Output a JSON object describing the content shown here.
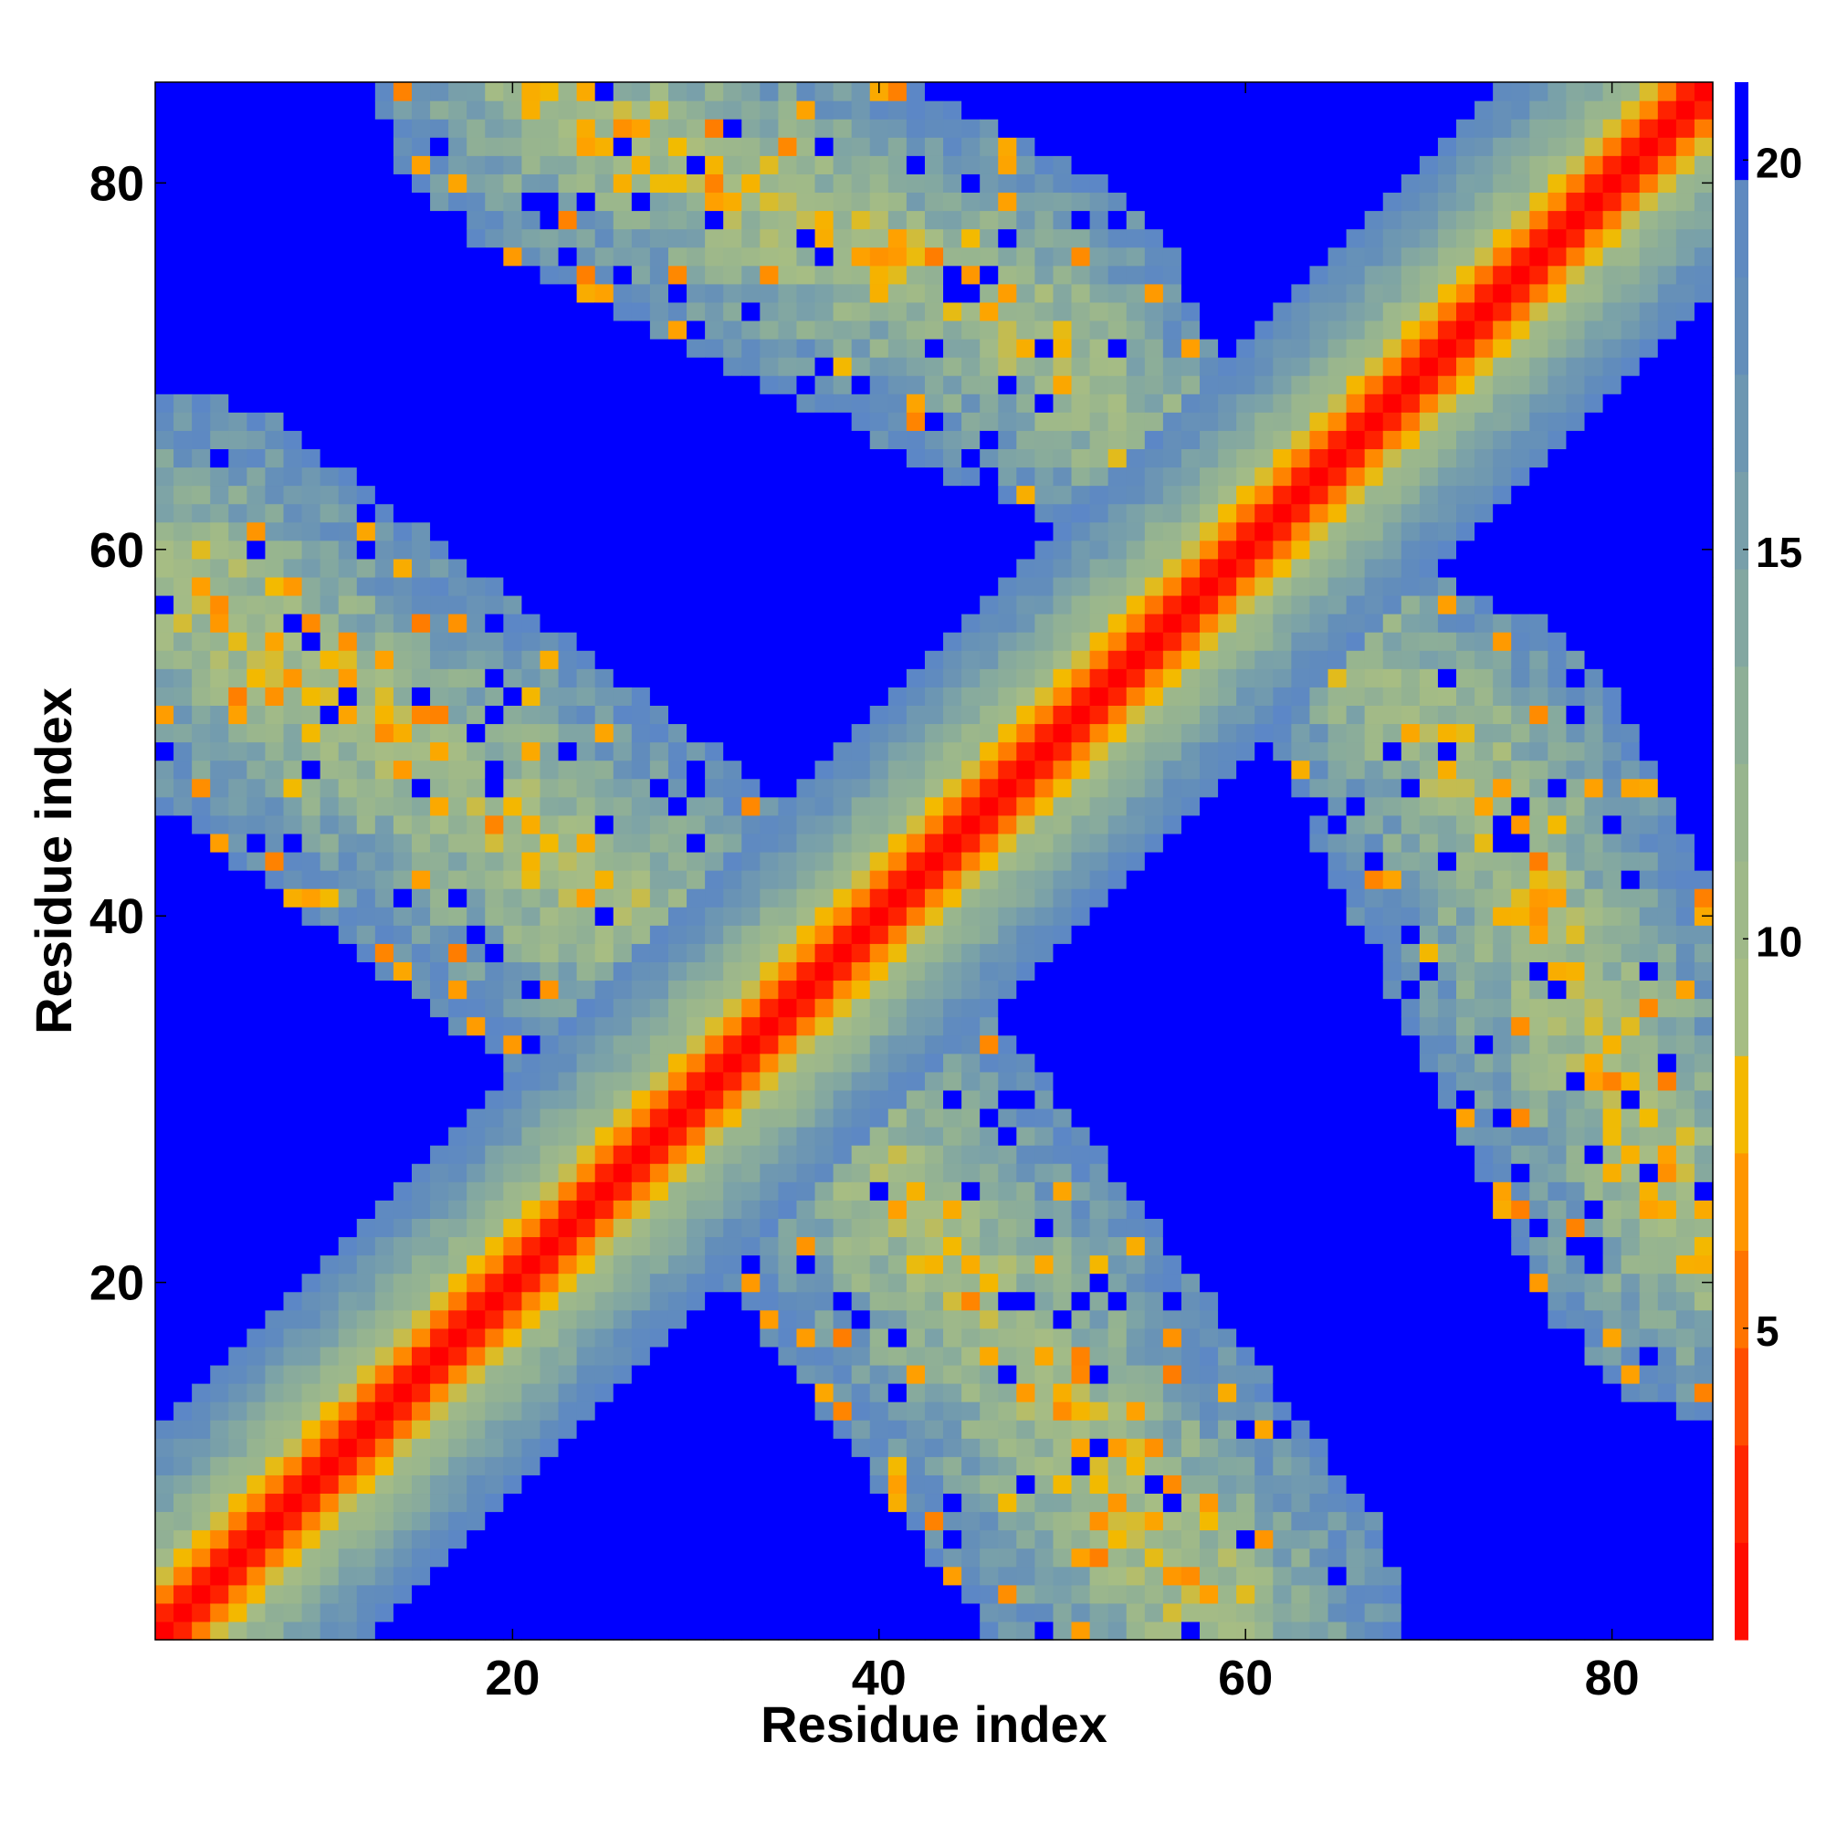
{
  "chart_data": {
    "type": "heatmap",
    "title": "",
    "xlabel": "Residue index",
    "ylabel": "Residue index",
    "xlim": [
      1,
      85
    ],
    "ylim": [
      1,
      85
    ],
    "n_residues": 85,
    "x_ticks": [
      20,
      40,
      60,
      80
    ],
    "y_ticks": [
      20,
      40,
      60,
      80
    ],
    "colorbar": {
      "range": [
        1,
        21
      ],
      "ticks": [
        5,
        10,
        15,
        20
      ],
      "cutoff": 21,
      "above_cutoff_color": "#0000ff",
      "color_stops": [
        {
          "value": 1,
          "color": "#ff0000"
        },
        {
          "value": 3,
          "color": "#ff2a00"
        },
        {
          "value": 5,
          "color": "#ff6a00"
        },
        {
          "value": 7,
          "color": "#ffa000"
        },
        {
          "value": 8,
          "color": "#f2bb00"
        },
        {
          "value": 9,
          "color": "#a7bd83"
        },
        {
          "value": 12,
          "color": "#96b490"
        },
        {
          "value": 15,
          "color": "#7ba2a8"
        },
        {
          "value": 18,
          "color": "#628dbb"
        },
        {
          "value": 21,
          "color": "#5b86c8"
        }
      ]
    },
    "structure": {
      "main_diagonal": {
        "band_halfwidth_under_8": 2.5,
        "band_halfwidth_under_21": 11
      },
      "contact_arms": [
        {
          "from": [
            2,
            58
          ],
          "to": [
            34,
            34
          ],
          "halfwidth": 9
        },
        {
          "from": [
            22,
            85
          ],
          "to": [
            48,
            72
          ],
          "halfwidth": 8
        },
        {
          "from": [
            48,
            72
          ],
          "to": [
            60,
            60
          ],
          "halfwidth": 6
        },
        {
          "from": [
            58,
            2
          ],
          "to": [
            34,
            34
          ],
          "halfwidth": 9
        },
        {
          "from": [
            85,
            22
          ],
          "to": [
            72,
            48
          ],
          "halfwidth": 8
        },
        {
          "from": [
            72,
            48
          ],
          "to": [
            60,
            60
          ],
          "halfwidth": 6
        },
        {
          "from": [
            48,
            2
          ],
          "to": [
            84,
            26
          ],
          "halfwidth": 6
        }
      ]
    },
    "values": "symmetric 85x85 C-alpha distance map: distances below 3 near the diagonal rising to 8 at |i-j|~3 and 21 at |i-j|~11; off-diagonal contact arms carry distances between 6 and 20; all other cells exceed the 21 cutoff (blue)"
  }
}
